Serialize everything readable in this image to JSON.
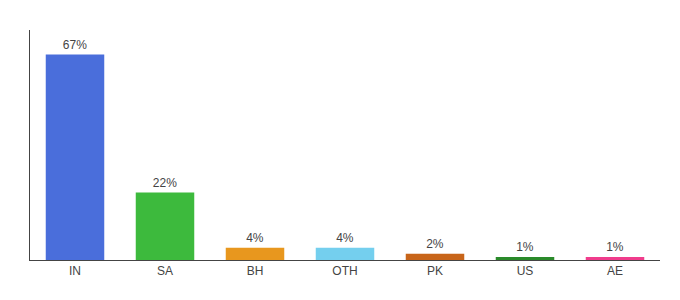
{
  "chart_data": {
    "type": "bar",
    "categories": [
      "IN",
      "SA",
      "BH",
      "OTH",
      "PK",
      "US",
      "AE"
    ],
    "values": [
      67,
      22,
      4,
      4,
      2,
      1,
      1
    ],
    "value_labels": [
      "67%",
      "22%",
      "4%",
      "4%",
      "2%",
      "1%",
      "1%"
    ],
    "colors": [
      "#4a6edb",
      "#3dba3d",
      "#e8971e",
      "#74cfee",
      "#c8651a",
      "#2a8a2a",
      "#f03c8c"
    ],
    "ylim": [
      0,
      75
    ],
    "grid": false,
    "data_labels": true,
    "tick_labels": "x"
  }
}
